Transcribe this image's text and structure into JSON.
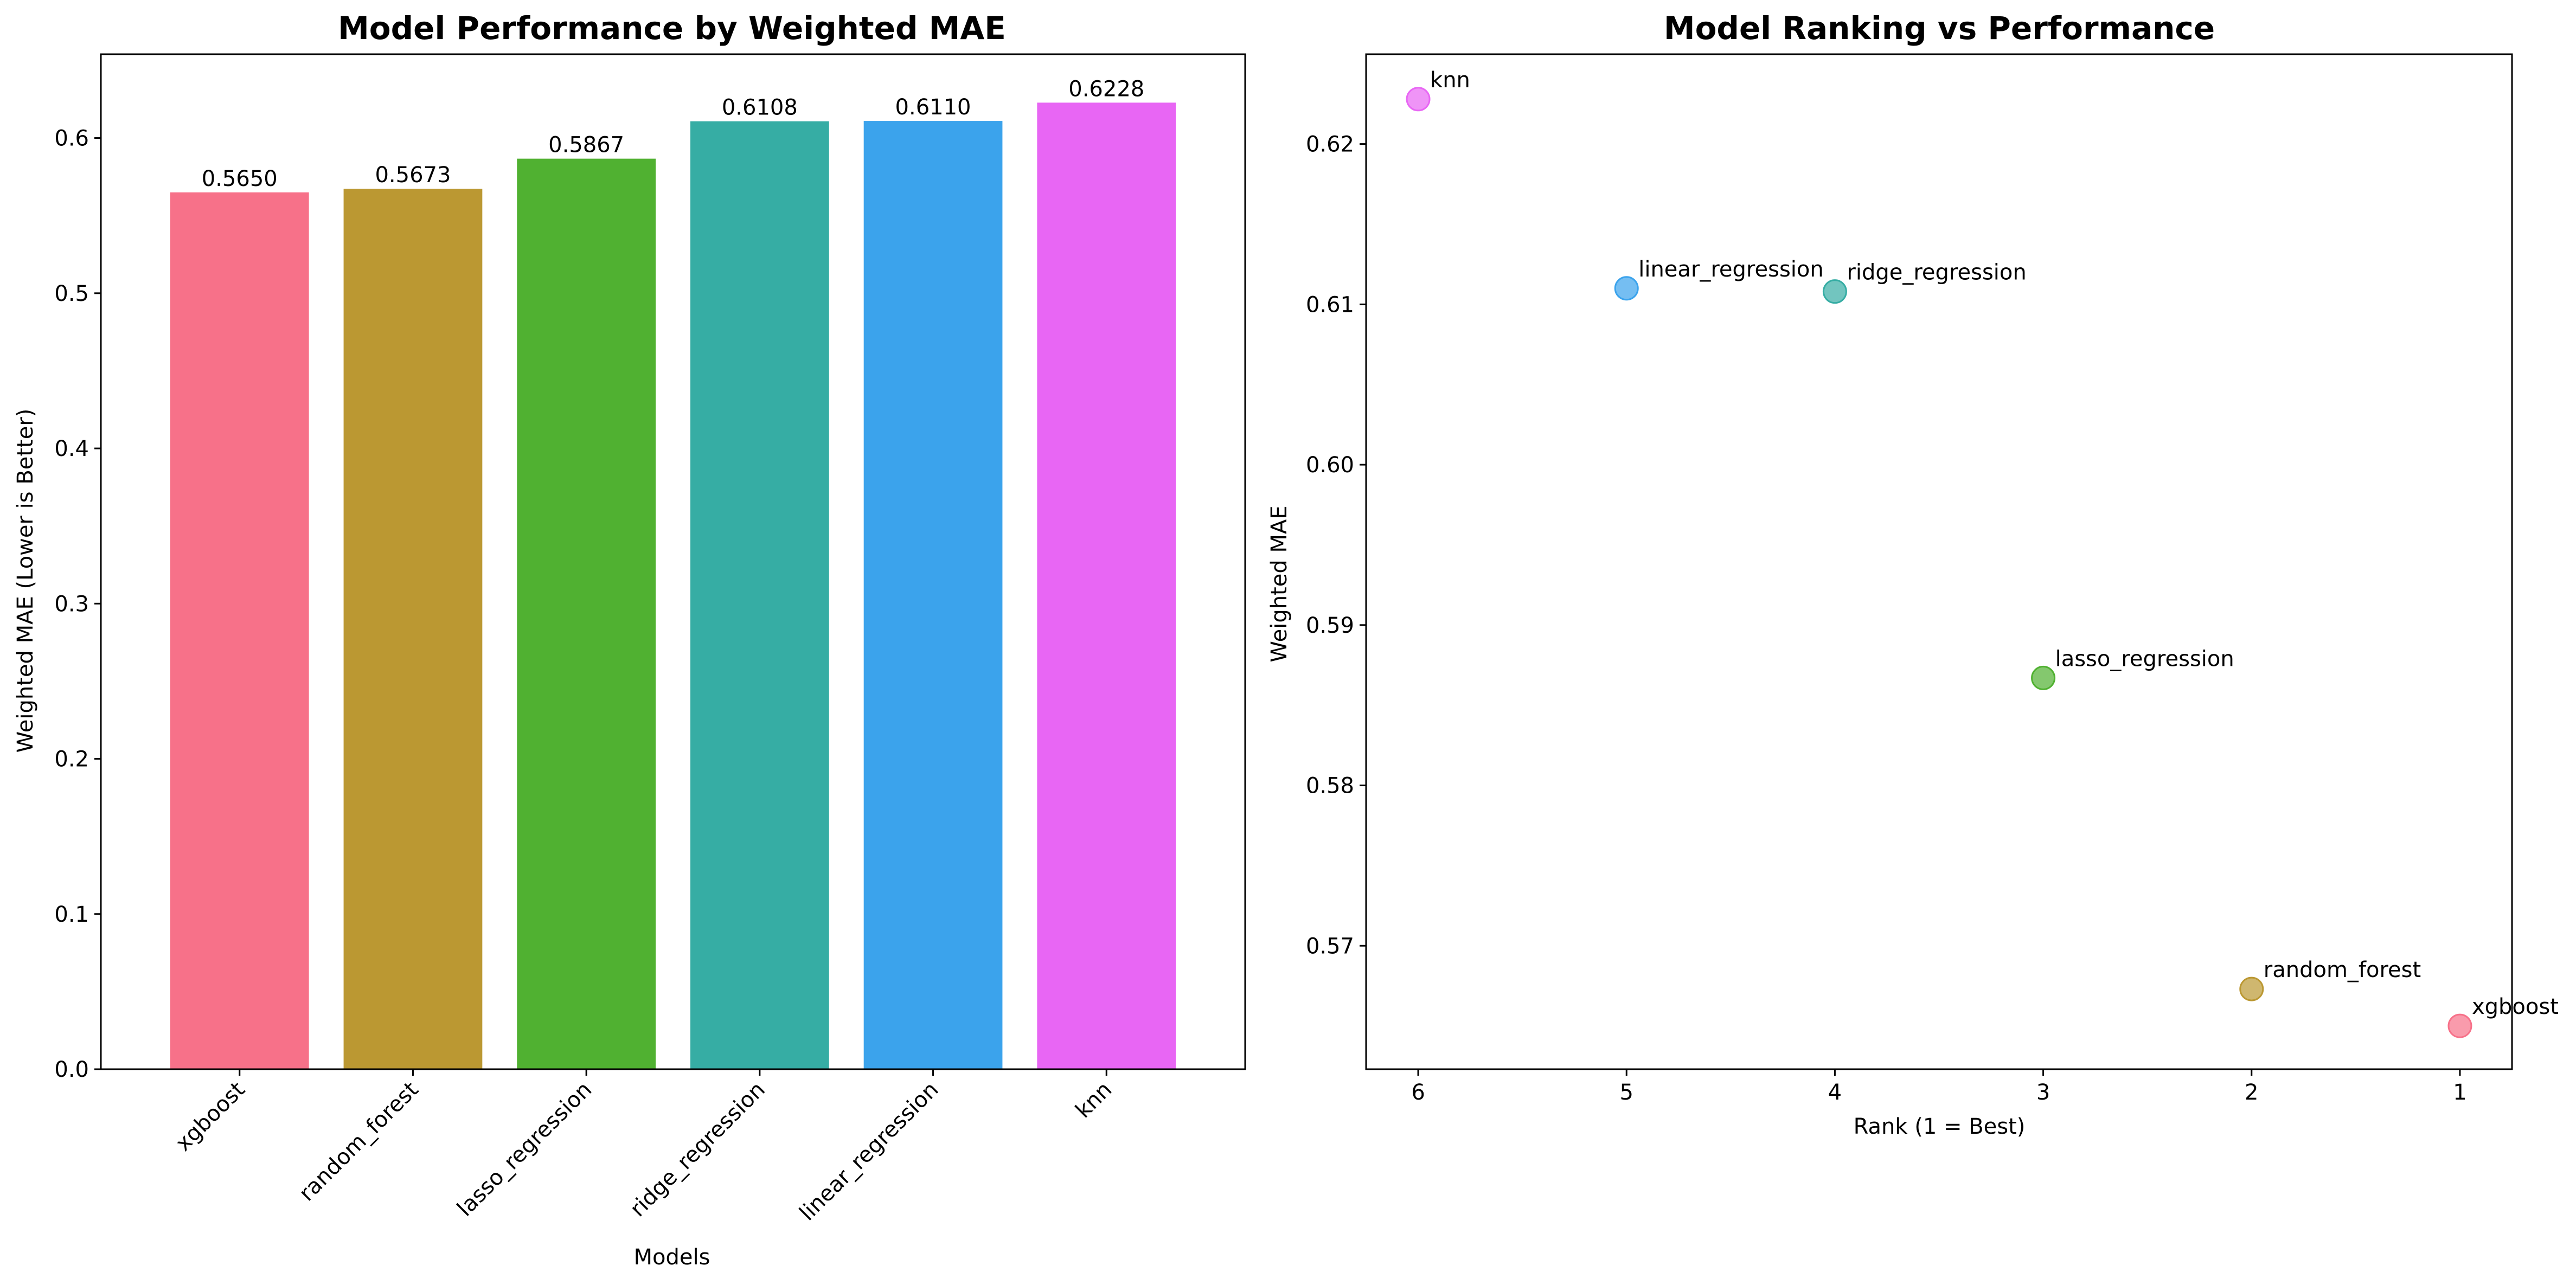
{
  "chart_data": [
    {
      "type": "bar",
      "title": "Model Performance by Weighted MAE",
      "xlabel": "Models",
      "ylabel": "Weighted MAE (Lower is Better)",
      "ylim": [
        0,
        0.654
      ],
      "yticks": [
        "0.0",
        "0.1",
        "0.2",
        "0.3",
        "0.4",
        "0.5",
        "0.6"
      ],
      "yticks_values": [
        0,
        0.1,
        0.2,
        0.3,
        0.4,
        0.5,
        0.6
      ],
      "categories": [
        "xgboost",
        "random_forest",
        "lasso_regression",
        "ridge_regression",
        "linear_regression",
        "knn"
      ],
      "values": [
        0.565,
        0.5673,
        0.5867,
        0.6108,
        0.611,
        0.6228
      ],
      "data_labels": [
        "0.5650",
        "0.5673",
        "0.5867",
        "0.6108",
        "0.6110",
        "0.6228"
      ],
      "colors": [
        "#f77189",
        "#bb9832",
        "#50b131",
        "#36ada4",
        "#3ba3ec",
        "#e866f4"
      ],
      "grid": false
    },
    {
      "type": "scatter",
      "title": "Model Ranking vs Performance",
      "xlabel": "Rank (1 = Best)",
      "ylabel": "Weighted MAE",
      "xlim": [
        6.25,
        0.75
      ],
      "ylim": [
        0.5623,
        0.6256
      ],
      "xticks": [
        "6",
        "5",
        "4",
        "3",
        "2",
        "1"
      ],
      "xticks_values": [
        6,
        5,
        4,
        3,
        2,
        1
      ],
      "yticks": [
        "0.57",
        "0.58",
        "0.59",
        "0.60",
        "0.61",
        "0.62"
      ],
      "yticks_values": [
        0.57,
        0.58,
        0.59,
        0.6,
        0.61,
        0.62
      ],
      "points": [
        {
          "label": "knn",
          "x": 6,
          "y": 0.6228,
          "color": "#e866f4"
        },
        {
          "label": "linear_regression",
          "x": 5,
          "y": 0.611,
          "color": "#3ba3ec"
        },
        {
          "label": "ridge_regression",
          "x": 4,
          "y": 0.6108,
          "color": "#36ada4"
        },
        {
          "label": "lasso_regression",
          "x": 3,
          "y": 0.5867,
          "color": "#50b131"
        },
        {
          "label": "random_forest",
          "x": 2,
          "y": 0.5673,
          "color": "#bb9832"
        },
        {
          "label": "xgboost",
          "x": 1,
          "y": 0.565,
          "color": "#f77189"
        }
      ],
      "grid": false
    }
  ]
}
